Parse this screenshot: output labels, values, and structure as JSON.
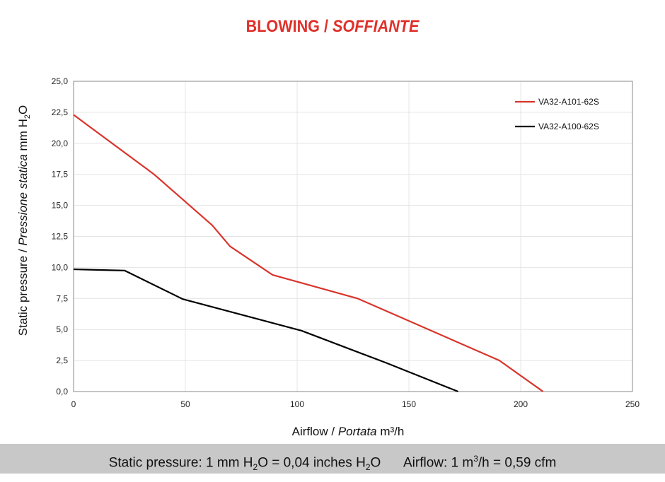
{
  "title": {
    "main": "BLOWING",
    "sep": " / ",
    "italic": "SOFFIANTE"
  },
  "footer": {
    "pressure_a": "Static pressure: 1 mm H",
    "pressure_b": "O = 0,04 inches H",
    "pressure_c": "O",
    "airflow_a": "Airflow: 1 m",
    "airflow_b": "/h = 0,59 cfm",
    "sub": "2",
    "sup": "3"
  },
  "chart_data": {
    "type": "line",
    "title": "BLOWING / SOFFIANTE",
    "xlabel": "Airflow / Portata m³/h",
    "ylabel": "Static pressure / Pressione statica mm H2O",
    "xlabel_parts": {
      "a": "Airflow",
      "b": "Portata",
      "c": "m³/h"
    },
    "ylabel_parts": {
      "a": "Static pressure",
      "b": "Pressione statica",
      "c": "mm H",
      "d": "2",
      "e": "O"
    },
    "xlim": [
      0,
      250
    ],
    "ylim": [
      0,
      25
    ],
    "xticks": [
      "0",
      "50",
      "100",
      "150",
      "200",
      "250"
    ],
    "yticks": [
      "0,0",
      "2,5",
      "5,0",
      "7,5",
      "10,0",
      "12,5",
      "15,0",
      "17,5",
      "20,0",
      "22,5",
      "25,0"
    ],
    "grid": true,
    "legend": "top-right",
    "series": [
      {
        "name": "VA32-A101-62S",
        "color": "#d9342b",
        "x": [
          0,
          33,
          36,
          62,
          70,
          89,
          127,
          190.5,
          210
        ],
        "y": [
          22.3,
          17.9,
          17.5,
          13.4,
          11.7,
          9.4,
          7.5,
          2.5,
          0
        ]
      },
      {
        "name": "VA32-A100-62S",
        "color": "#000000",
        "x": [
          0,
          22.8,
          48.7,
          102,
          140,
          172
        ],
        "y": [
          9.85,
          9.75,
          7.46,
          4.9,
          2.3,
          0
        ]
      }
    ]
  }
}
